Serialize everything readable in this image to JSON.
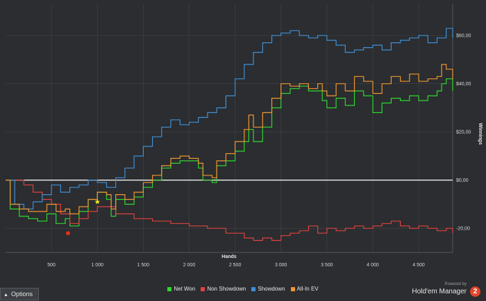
{
  "chart_data": {
    "type": "line",
    "xlabel": "Hands",
    "ylabel": "Winnings",
    "xlim": [
      0,
      4870
    ],
    "ylim": [
      -30,
      73
    ],
    "x_ticks": [
      500,
      1000,
      1500,
      2000,
      2500,
      3000,
      3500,
      4000,
      4500
    ],
    "x_tick_labels": [
      "500",
      "1 000",
      "1 500",
      "2 000",
      "2 500",
      "3 000",
      "3 500",
      "4 000",
      "4 500"
    ],
    "y_ticks": [
      -20,
      0,
      20,
      40,
      60
    ],
    "y_tick_labels": [
      "-20,00",
      "$0,00",
      "$20,00",
      "$40,00",
      "$60,00"
    ],
    "grid": true,
    "legend_position": "bottom",
    "series": [
      {
        "name": "Net Won",
        "color": "#2fd82f",
        "x": [
          0,
          50,
          150,
          250,
          350,
          450,
          550,
          650,
          700,
          800,
          900,
          1000,
          1100,
          1150,
          1200,
          1300,
          1400,
          1500,
          1600,
          1700,
          1800,
          1900,
          2000,
          2100,
          2150,
          2250,
          2300,
          2400,
          2500,
          2600,
          2650,
          2700,
          2800,
          2900,
          3000,
          3100,
          3200,
          3300,
          3400,
          3450,
          3500,
          3600,
          3700,
          3800,
          3900,
          4000,
          4100,
          4200,
          4300,
          4400,
          4500,
          4600,
          4700,
          4750,
          4800,
          4870
        ],
        "y": [
          0,
          -12,
          -15,
          -16,
          -17,
          -14,
          -18,
          -16,
          -19,
          -13,
          -8,
          -5,
          -8,
          -15,
          -8,
          -10,
          -7,
          -3,
          0,
          5,
          7,
          8,
          8,
          5,
          0,
          -1,
          6,
          8,
          12,
          16,
          21,
          16,
          22,
          30,
          36,
          38,
          39,
          37,
          37,
          33,
          30,
          34,
          31,
          37,
          35,
          28,
          32,
          34,
          33,
          35,
          33,
          35,
          37,
          40,
          42,
          37
        ]
      },
      {
        "name": "Non Showdown",
        "color": "#e0413f",
        "x": [
          0,
          200,
          300,
          400,
          500,
          600,
          700,
          800,
          900,
          1000,
          1200,
          1400,
          1600,
          1800,
          2000,
          2200,
          2400,
          2600,
          2700,
          2800,
          2900,
          3000,
          3100,
          3200,
          3300,
          3400,
          3500,
          3600,
          3700,
          3800,
          3900,
          4000,
          4100,
          4200,
          4300,
          4400,
          4500,
          4600,
          4700,
          4800,
          4870
        ],
        "y": [
          0,
          -2,
          -5,
          -8,
          -10,
          -14,
          -18,
          -16,
          -13,
          -11,
          -14,
          -16,
          -17,
          -18,
          -19,
          -20,
          -22,
          -24,
          -25,
          -24,
          -25,
          -23,
          -22,
          -21,
          -19,
          -22,
          -20,
          -21,
          -20,
          -19,
          -20,
          -19,
          -18,
          -17,
          -19,
          -20,
          -19,
          -20,
          -21,
          -20,
          -22
        ]
      },
      {
        "name": "Showdown",
        "color": "#3f8fd6",
        "x": [
          0,
          100,
          200,
          300,
          400,
          500,
          600,
          700,
          800,
          900,
          1000,
          1100,
          1200,
          1300,
          1400,
          1500,
          1600,
          1700,
          1800,
          1900,
          2000,
          2100,
          2200,
          2300,
          2400,
          2500,
          2600,
          2700,
          2800,
          2900,
          3000,
          3100,
          3200,
          3300,
          3400,
          3500,
          3600,
          3700,
          3800,
          3900,
          4000,
          4100,
          4200,
          4300,
          4400,
          4500,
          4600,
          4700,
          4800,
          4870
        ],
        "y": [
          0,
          -10,
          -12,
          -9,
          -6,
          -2,
          -5,
          -3,
          -2,
          0,
          -1,
          -3,
          1,
          5,
          10,
          14,
          18,
          22,
          25,
          23,
          24,
          26,
          28,
          30,
          35,
          42,
          48,
          53,
          57,
          60,
          61,
          62,
          60,
          59,
          60,
          58,
          56,
          53,
          54,
          55,
          56,
          54,
          57,
          58,
          59,
          60,
          57,
          59,
          63,
          59
        ]
      },
      {
        "name": "All-In EV",
        "color": "#f0962f",
        "x": [
          0,
          50,
          150,
          250,
          350,
          450,
          550,
          650,
          700,
          800,
          900,
          1000,
          1100,
          1150,
          1200,
          1300,
          1400,
          1500,
          1600,
          1700,
          1800,
          1900,
          2000,
          2100,
          2150,
          2250,
          2300,
          2400,
          2500,
          2600,
          2650,
          2700,
          2800,
          2900,
          3000,
          3100,
          3200,
          3300,
          3400,
          3450,
          3500,
          3600,
          3700,
          3800,
          3900,
          4000,
          4100,
          4200,
          4300,
          4400,
          4500,
          4600,
          4700,
          4750,
          4800,
          4870
        ],
        "y": [
          0,
          -10,
          -12,
          -13,
          -13,
          -10,
          -13,
          -12,
          -14,
          -11,
          -8,
          -5,
          -6,
          -12,
          -6,
          -8,
          -5,
          -1,
          2,
          6,
          9,
          10,
          9,
          7,
          2,
          1,
          8,
          11,
          16,
          21,
          27,
          22,
          28,
          34,
          40,
          39,
          40,
          38,
          40,
          37,
          35,
          40,
          37,
          43,
          41,
          36,
          40,
          43,
          41,
          44,
          41,
          42,
          43,
          48,
          46,
          42
        ]
      }
    ],
    "markers": [
      {
        "name": "red-dot",
        "x": 680,
        "y": -22,
        "color": "#e0301f"
      },
      {
        "name": "star",
        "x": 1000,
        "y": -9,
        "color": "#f3e31a"
      }
    ]
  },
  "options_label": "Options",
  "brand": {
    "powered_by": "Powered by",
    "product": "Hold'em Manager",
    "logo_number": "2"
  }
}
